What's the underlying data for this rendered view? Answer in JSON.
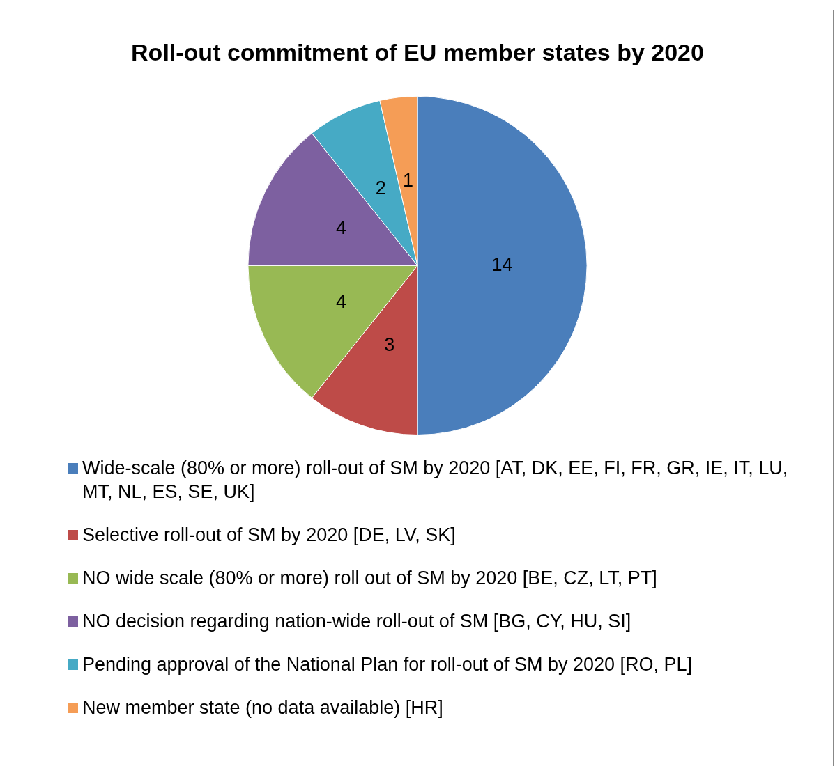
{
  "chart_data": {
    "type": "pie",
    "title": "Roll-out commitment of EU member states by 2020",
    "categories": [
      "Wide-scale (80% or more) roll-out of SM by 2020 [AT, DK, EE, FI, FR, GR, IE, IT, LU, MT, NL, ES, SE, UK]",
      "Selective roll-out of SM by 2020 [DE, LV, SK]",
      "NO wide scale (80% or more) roll out of SM by 2020 [BE, CZ, LT, PT]",
      "NO decision regarding nation-wide roll-out of SM [BG, CY, HU, SI]",
      "Pending approval of the National Plan for roll-out of SM by 2020 [RO, PL]",
      "New member state (no data available) [HR]"
    ],
    "values": [
      14,
      3,
      4,
      4,
      2,
      1
    ],
    "colors": [
      "#4a7ebb",
      "#be4b48",
      "#98b954",
      "#7d60a0",
      "#46aac5",
      "#f59d56"
    ],
    "data_labels": true,
    "legend": "bottom"
  }
}
